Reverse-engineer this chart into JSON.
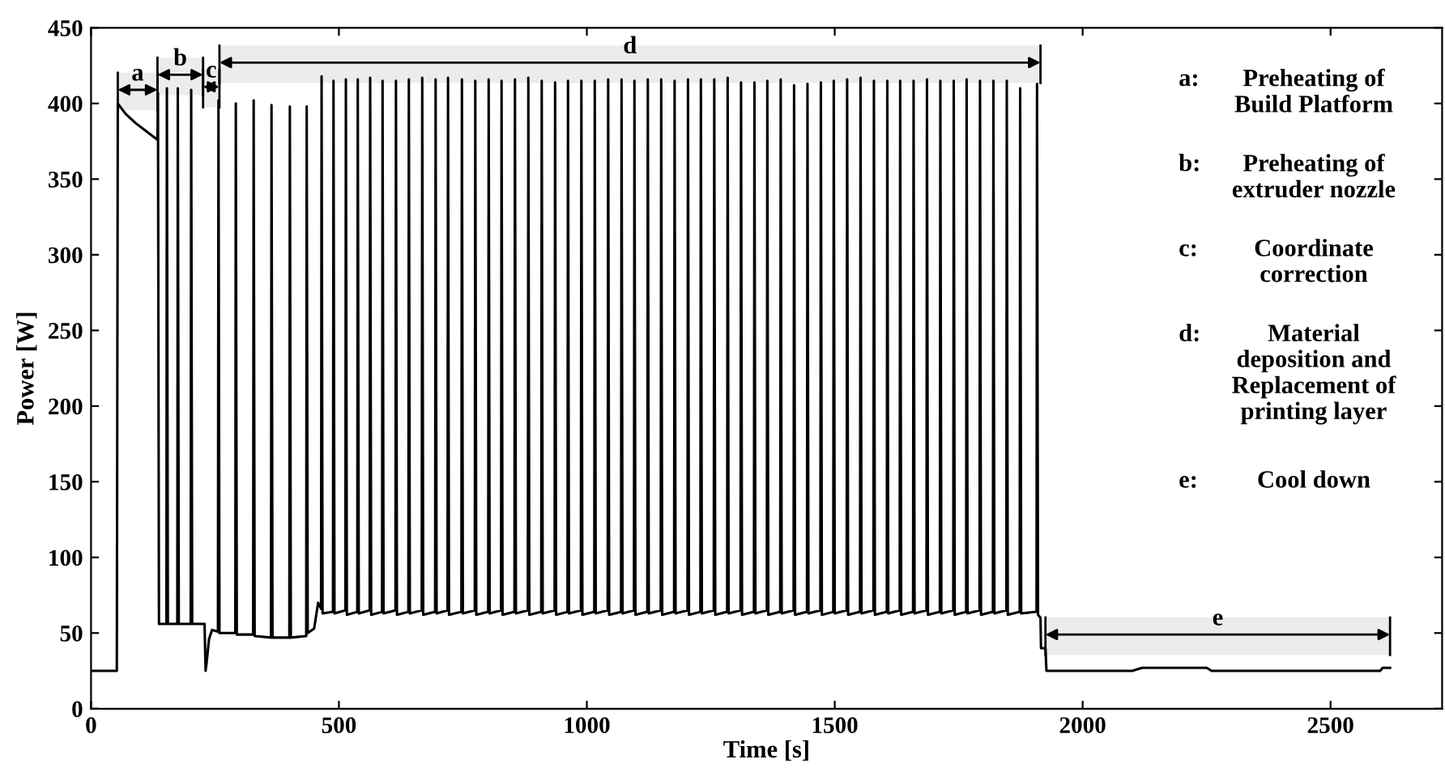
{
  "chart_data": {
    "type": "line",
    "xlabel": "Time [s]",
    "ylabel": "Power [W]",
    "xlim": [
      0,
      2725
    ],
    "ylim": [
      0,
      450
    ],
    "xticks": [
      0,
      500,
      1000,
      1500,
      2000,
      2500
    ],
    "yticks": [
      0,
      50,
      100,
      150,
      200,
      250,
      300,
      350,
      400,
      450
    ],
    "grid": false,
    "legend": false,
    "series": [
      {
        "color": "#000000",
        "x": [
          0,
          52,
          54,
          70,
          90,
          110,
          134,
          135,
          137,
          152,
          153,
          155,
          174,
          175,
          177,
          201,
          202,
          204,
          224,
          229,
          231,
          233,
          238,
          244,
          256,
          257,
          259,
          291,
          292,
          294,
          327,
          328,
          330,
          363,
          364,
          366,
          400,
          401,
          403,
          434,
          435,
          437,
          450,
          458,
          464,
          465,
          467,
          488,
          489,
          491,
          513,
          514,
          516,
          537,
          538,
          540,
          562,
          563,
          565,
          587,
          588,
          590,
          614,
          615,
          617,
          640,
          641,
          643,
          667,
          668,
          670,
          694,
          695,
          697,
          719,
          720,
          722,
          747,
          748,
          750,
          774,
          775,
          777,
          801,
          802,
          804,
          827,
          828,
          830,
          854,
          855,
          857,
          881,
          882,
          884,
          908,
          909,
          911,
          935,
          936,
          938,
          961,
          962,
          964,
          988,
          989,
          991,
          1015,
          1016,
          1018,
          1042,
          1043,
          1045,
          1069,
          1070,
          1072,
          1095,
          1096,
          1098,
          1122,
          1123,
          1125,
          1149,
          1150,
          1152,
          1176,
          1177,
          1179,
          1203,
          1204,
          1206,
          1229,
          1230,
          1232,
          1256,
          1257,
          1259,
          1283,
          1284,
          1286,
          1310,
          1311,
          1313,
          1337,
          1338,
          1340,
          1363,
          1364,
          1366,
          1390,
          1391,
          1393,
          1417,
          1418,
          1420,
          1444,
          1445,
          1447,
          1471,
          1472,
          1474,
          1497,
          1498,
          1500,
          1524,
          1525,
          1527,
          1551,
          1552,
          1554,
          1578,
          1579,
          1581,
          1605,
          1606,
          1608,
          1631,
          1632,
          1634,
          1658,
          1659,
          1661,
          1685,
          1686,
          1688,
          1712,
          1713,
          1715,
          1739,
          1740,
          1742,
          1765,
          1766,
          1768,
          1792,
          1793,
          1795,
          1819,
          1820,
          1822,
          1846,
          1847,
          1849,
          1873,
          1874,
          1876,
          1907,
          1908,
          1910,
          1915,
          1916,
          1925,
          1927,
          2100,
          2120,
          2250,
          2260,
          2600,
          2605,
          2620
        ],
        "values": [
          25,
          25,
          400,
          393,
          387,
          382,
          376,
          407,
          56,
          56,
          410,
          56,
          56,
          410,
          56,
          56,
          409,
          56,
          56,
          56,
          25,
          30,
          46,
          52,
          51,
          402,
          50,
          50,
          400,
          49,
          49,
          402,
          48,
          47,
          399,
          47,
          47,
          398,
          47,
          48,
          398,
          50,
          53,
          70,
          66,
          418,
          63,
          64,
          415,
          63,
          65,
          416,
          62,
          64,
          416,
          63,
          65,
          417,
          62,
          64,
          415,
          63,
          65,
          415,
          62,
          64,
          416,
          63,
          65,
          417,
          62,
          64,
          416,
          63,
          65,
          417,
          62,
          64,
          416,
          63,
          65,
          415,
          62,
          64,
          416,
          63,
          65,
          415,
          62,
          64,
          416,
          63,
          65,
          417,
          62,
          64,
          415,
          63,
          65,
          414,
          62,
          64,
          415,
          63,
          65,
          415,
          62,
          64,
          415,
          63,
          65,
          416,
          62,
          64,
          416,
          63,
          65,
          415,
          62,
          64,
          416,
          63,
          65,
          416,
          62,
          64,
          415,
          63,
          65,
          416,
          62,
          64,
          416,
          63,
          65,
          416,
          62,
          64,
          417,
          63,
          65,
          414,
          62,
          64,
          414,
          63,
          65,
          415,
          62,
          64,
          416,
          63,
          65,
          412,
          62,
          64,
          413,
          63,
          65,
          414,
          62,
          64,
          415,
          63,
          65,
          416,
          62,
          64,
          417,
          63,
          65,
          415,
          62,
          64,
          415,
          63,
          65,
          415,
          62,
          64,
          415,
          63,
          65,
          416,
          62,
          64,
          415,
          63,
          65,
          415,
          62,
          64,
          416,
          63,
          65,
          415,
          62,
          64,
          415,
          63,
          65,
          415,
          62,
          64,
          410,
          63,
          64,
          413,
          62,
          60,
          40,
          40,
          25,
          25,
          27,
          27,
          25,
          25,
          27,
          27
        ]
      }
    ],
    "bands": [
      {
        "axis": "x",
        "from": 54,
        "to": 134,
        "label": "a",
        "color": "#ececec"
      },
      {
        "axis": "x",
        "from": 134,
        "to": 226,
        "label": "b",
        "color": "#ececec"
      },
      {
        "axis": "x",
        "from": 226,
        "to": 259,
        "label": "c",
        "color": "#ececec"
      },
      {
        "axis": "x",
        "from": 259,
        "to": 1915,
        "label": "d",
        "color": "#ececec"
      },
      {
        "axis": "x",
        "from": 1925,
        "to": 2620,
        "label": "e",
        "color": "#ececec"
      }
    ],
    "annotations": [
      "a: Preheating of\nBuild Platform",
      "b: Preheating of\nextruder nozzle",
      "c: Coordinate\ncorrection",
      "d: Material\ndeposition and\nReplacement of\nprinting layer",
      "e: Cool down"
    ]
  }
}
